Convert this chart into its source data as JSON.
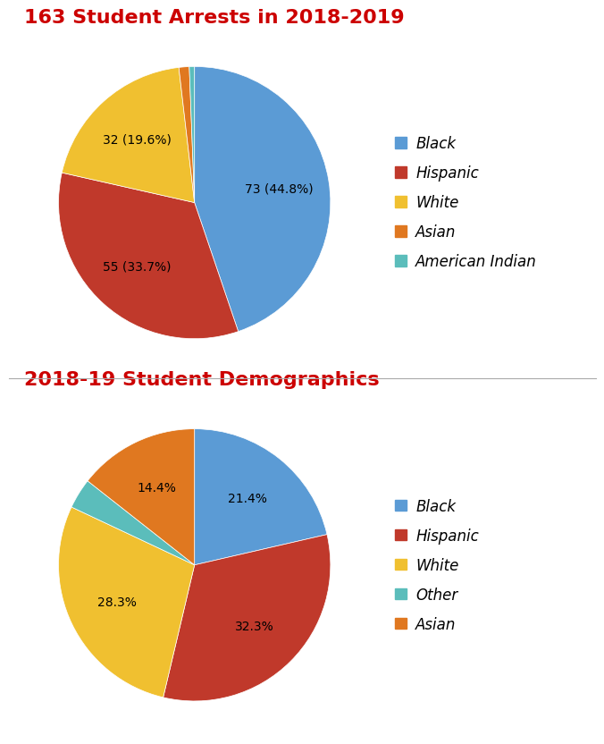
{
  "chart1": {
    "title": "163 Student Arrests in 2018-2019",
    "title_color": "#cc0000",
    "labels": [
      "Black",
      "Hispanic",
      "White",
      "Asian",
      "American Indian"
    ],
    "values": [
      73,
      55,
      32,
      2,
      1
    ],
    "colors": [
      "#5b9bd5",
      "#c0392b",
      "#f0c030",
      "#e07820",
      "#5bbdbb"
    ],
    "autopct_labels": [
      "73 (44.8%)",
      "55 (33.7%)",
      "32 (19.6%)",
      "",
      ""
    ],
    "startangle": 90,
    "legend_labels": [
      "Black",
      "Hispanic",
      "White",
      "Asian",
      "American Indian"
    ]
  },
  "chart2": {
    "title": "2018-19 Student Demographics",
    "title_color": "#cc0000",
    "labels": [
      "Black",
      "Hispanic",
      "White",
      "Other",
      "Asian"
    ],
    "values": [
      21.4,
      32.3,
      28.3,
      3.6,
      14.4
    ],
    "colors": [
      "#5b9bd5",
      "#c0392b",
      "#f0c030",
      "#5bbdbb",
      "#e07820"
    ],
    "autopct_labels": [
      "21.4%",
      "32.3%",
      "28.3%",
      "",
      "14.4%"
    ],
    "startangle": 90,
    "legend_labels": [
      "Black",
      "Hispanic",
      "White",
      "Other",
      "Asian"
    ]
  },
  "background_color": "#ffffff",
  "divider_color": "#aaaaaa",
  "title_fontsize": 16,
  "label_fontsize": 10,
  "legend_fontsize": 12
}
